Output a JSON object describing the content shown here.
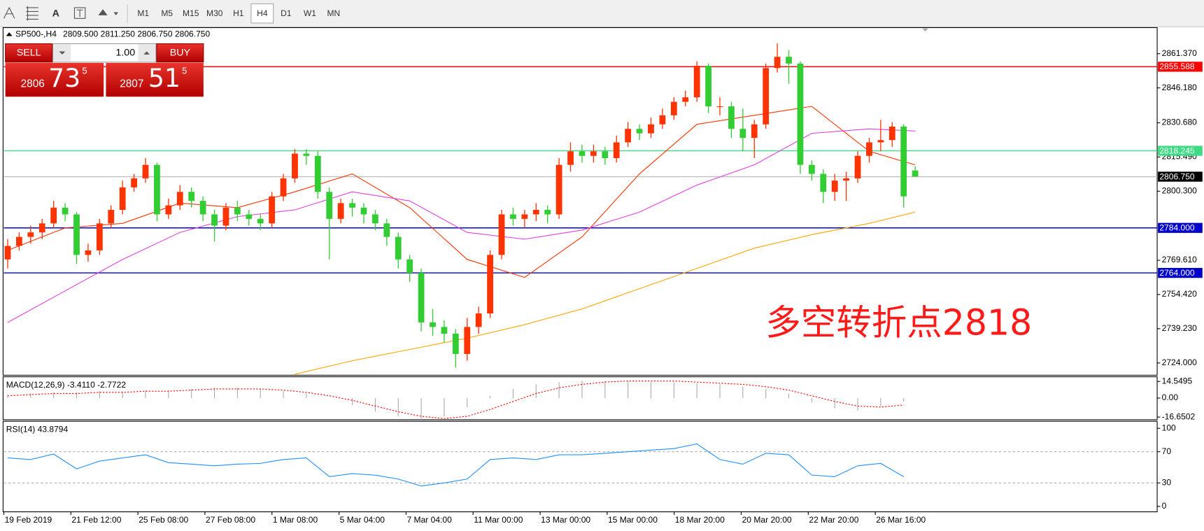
{
  "toolbar": {
    "text_tool": "A",
    "timeframes": [
      "M1",
      "M5",
      "M15",
      "M30",
      "H1",
      "H4",
      "D1",
      "W1",
      "MN"
    ],
    "active": "H4"
  },
  "header": {
    "symbol": "SP500-,H4",
    "quote": "2809.500 2811.250 2806.750 2806.750"
  },
  "trade_panel": {
    "sell": "SELL",
    "buy": "BUY",
    "lot": "1.00",
    "sell_price": [
      "2806",
      "73",
      "5"
    ],
    "buy_price": [
      "2807",
      "51",
      "5"
    ]
  },
  "chart_data": [
    {
      "type": "candlestick",
      "annotation": "多空转折点2818",
      "up_color": "#ff3300",
      "down_color": "#32cd32",
      "ylim": [
        2718.55,
        2872.96
      ],
      "yticks": [
        {
          "value": 2861.37,
          "label": "2861.370"
        },
        {
          "value": 2846.18,
          "label": "2846.180"
        },
        {
          "value": 2830.68,
          "label": "2830.680"
        },
        {
          "value": 2815.49,
          "label": "2815.490"
        },
        {
          "value": 2800.3,
          "label": "2800.300"
        },
        {
          "value": 2769.61,
          "label": "2769.610"
        },
        {
          "value": 2754.42,
          "label": "2754.420"
        },
        {
          "value": 2739.23,
          "label": "2739.230"
        },
        {
          "value": 2724,
          "label": "2724.000"
        }
      ],
      "levels": [
        {
          "value": 2855.588,
          "color": "#ff0000"
        },
        {
          "value": 2818.245,
          "color": "#3ddc84"
        },
        {
          "value": 2806.75,
          "label": "2806.750",
          "color": "#c0c0c0",
          "badge": "#000000"
        },
        {
          "value": 2784,
          "label": "2784.000",
          "color": "#0000cd"
        },
        {
          "value": 2764,
          "label": "2764.000",
          "color": "#0000cd"
        }
      ],
      "open": [
        2770,
        2776,
        2780,
        2782,
        2786,
        2793,
        2790,
        2772,
        2774,
        2786,
        2792,
        2802,
        2806,
        2812,
        2790,
        2794,
        2800,
        2796,
        2790,
        2785,
        2793,
        2790,
        2788,
        2786,
        2798,
        2806,
        2817,
        2816,
        2800,
        2788,
        2795,
        2793,
        2790,
        2786,
        2780,
        2770,
        2764,
        2742,
        2740,
        2737,
        2728,
        2740,
        2746,
        2772,
        2790,
        2788,
        2790,
        2792,
        2790,
        2812,
        2818,
        2816,
        2818,
        2815,
        2822,
        2828,
        2826,
        2830,
        2834,
        2840,
        2842,
        2856,
        2838,
        2838,
        2828,
        2824,
        2830,
        2855,
        2860,
        2857,
        2812,
        2808,
        2800,
        2805,
        2806,
        2816,
        2822,
        2823,
        2829,
        2809.5
      ],
      "high": [
        2779,
        2782,
        2785,
        2788,
        2796,
        2795,
        2791,
        2777,
        2788,
        2794,
        2805,
        2808,
        2815,
        2813,
        2797,
        2803,
        2802,
        2798,
        2792,
        2795,
        2796,
        2792,
        2790,
        2800,
        2808,
        2819,
        2819,
        2818,
        2802,
        2797,
        2797,
        2795,
        2792,
        2788,
        2782,
        2772,
        2766,
        2748,
        2743,
        2739,
        2744,
        2749,
        2774,
        2792,
        2793,
        2792,
        2795,
        2794,
        2815,
        2822,
        2821,
        2821,
        2820,
        2825,
        2831,
        2830,
        2833,
        2837,
        2842,
        2845,
        2858,
        2857,
        2842,
        2840,
        2837,
        2832,
        2857,
        2866,
        2863,
        2858,
        2814,
        2810,
        2808,
        2809,
        2818,
        2824,
        2832,
        2831,
        2830,
        2811.25
      ],
      "low": [
        2766,
        2774,
        2777,
        2779,
        2784,
        2787,
        2768,
        2769,
        2772,
        2784,
        2790,
        2800,
        2804,
        2787,
        2788,
        2792,
        2793,
        2787,
        2778,
        2783,
        2787,
        2785,
        2783,
        2784,
        2796,
        2804,
        2812,
        2797,
        2770,
        2786,
        2789,
        2786,
        2783,
        2776,
        2766,
        2760,
        2738,
        2736,
        2733,
        2722,
        2725,
        2737,
        2744,
        2770,
        2785,
        2784,
        2787,
        2786,
        2788,
        2809,
        2813,
        2813,
        2812,
        2813,
        2820,
        2823,
        2824,
        2828,
        2832,
        2838,
        2840,
        2835,
        2834,
        2824,
        2818,
        2815,
        2828,
        2853,
        2848,
        2808,
        2805,
        2795,
        2796,
        2796,
        2804,
        2813,
        2818,
        2820,
        2793,
        2806.75
      ],
      "close": [
        2776,
        2780,
        2782,
        2786,
        2793,
        2790,
        2772,
        2774,
        2786,
        2792,
        2802,
        2806,
        2812,
        2790,
        2794,
        2800,
        2796,
        2790,
        2785,
        2793,
        2790,
        2788,
        2786,
        2798,
        2806,
        2817,
        2816,
        2800,
        2788,
        2795,
        2793,
        2790,
        2786,
        2780,
        2770,
        2764,
        2742,
        2740,
        2737,
        2728,
        2740,
        2746,
        2772,
        2790,
        2788,
        2790,
        2792,
        2790,
        2812,
        2818,
        2816,
        2818,
        2815,
        2822,
        2828,
        2826,
        2830,
        2834,
        2840,
        2842,
        2856,
        2838,
        2838,
        2828,
        2824,
        2830,
        2855,
        2860,
        2857,
        2812,
        2808,
        2800,
        2805,
        2806,
        2816,
        2822,
        2823,
        2829,
        2798,
        2806.75
      ],
      "ma": [
        {
          "color": "#ff3300",
          "x": [
            0,
            5,
            10,
            15,
            20,
            25,
            30,
            35,
            40,
            45,
            50,
            55,
            60,
            65,
            70,
            75,
            79
          ],
          "values": [
            2774,
            2784,
            2786,
            2795,
            2793,
            2800,
            2808,
            2793,
            2770,
            2762,
            2780,
            2808,
            2830,
            2834,
            2838,
            2818,
            2812
          ]
        },
        {
          "color": "#e040e0",
          "x": [
            0,
            5,
            10,
            15,
            20,
            25,
            30,
            35,
            40,
            45,
            50,
            55,
            60,
            65,
            70,
            75,
            79
          ],
          "values": [
            2742,
            2756,
            2770,
            2782,
            2789,
            2792,
            2800,
            2796,
            2782,
            2779,
            2783,
            2791,
            2803,
            2812,
            2826,
            2828,
            2827
          ]
        },
        {
          "color": "#ffa500",
          "x": [
            25,
            30,
            35,
            40,
            45,
            50,
            55,
            60,
            65,
            70,
            75,
            79
          ],
          "values": [
            2719,
            2725,
            2730,
            2735,
            2741,
            2748,
            2757,
            2766,
            2775,
            2781,
            2786,
            2791
          ]
        }
      ]
    },
    {
      "type": "macd",
      "title": "MACD(12,26,9) -3.4110 -2.7722",
      "ylim": [
        -19,
        18
      ],
      "yticks": [
        14.5495,
        {
          "value": 0,
          "label": "0.00"
        },
        -16.6502
      ],
      "hist_color": "#a9a9a9",
      "signal_color": "#ff0000",
      "x": [
        0,
        2,
        4,
        6,
        8,
        10,
        12,
        14,
        16,
        18,
        20,
        22,
        24,
        26,
        28,
        30,
        32,
        34,
        36,
        38,
        40,
        42,
        44,
        46,
        48,
        50,
        52,
        54,
        56,
        58,
        60,
        62,
        64,
        66,
        68,
        70,
        72,
        74,
        76,
        78
      ],
      "hist": [
        3,
        4,
        5,
        5,
        6,
        6,
        7,
        7,
        8,
        9,
        9,
        8,
        6,
        4,
        0,
        -6,
        -12,
        -16,
        -20,
        -16,
        -8,
        2,
        8,
        12,
        14,
        15,
        15,
        15,
        14,
        14,
        13,
        12,
        10,
        8,
        4,
        -4,
        -9,
        -11,
        -7,
        -3
      ],
      "signal": [
        2,
        3,
        4,
        4,
        5,
        5,
        6,
        6,
        7,
        8,
        8,
        8,
        7,
        5,
        2,
        -2,
        -7,
        -12,
        -16,
        -18,
        -16,
        -10,
        -3,
        4,
        9,
        12,
        14,
        15,
        15,
        15,
        14,
        13,
        12,
        10,
        7,
        2,
        -3,
        -7,
        -8,
        -6
      ]
    },
    {
      "type": "line",
      "title": "RSI(14) 43.8794",
      "ylim": [
        -7,
        109
      ],
      "yticks": [
        100,
        70,
        30,
        0
      ],
      "color": "#1e90ff",
      "x": [
        0,
        2,
        4,
        6,
        8,
        10,
        12,
        14,
        16,
        18,
        20,
        22,
        24,
        26,
        28,
        30,
        32,
        34,
        36,
        38,
        40,
        42,
        44,
        46,
        48,
        50,
        52,
        54,
        56,
        58,
        60,
        62,
        64,
        66,
        68,
        70,
        72,
        74,
        76,
        78
      ],
      "values": [
        62,
        60,
        67,
        48,
        58,
        62,
        66,
        56,
        54,
        52,
        54,
        55,
        60,
        62,
        38,
        42,
        40,
        35,
        26,
        30,
        35,
        60,
        62,
        60,
        66,
        66,
        68,
        70,
        72,
        74,
        80,
        60,
        54,
        68,
        66,
        40,
        38,
        52,
        55,
        38
      ],
      "xtick_labels": [
        "19 Feb 2019",
        "21 Feb 12:00",
        "25 Feb 08:00",
        "27 Feb 08:00",
        "1 Mar 08:00",
        "5 Mar 04:00",
        "7 Mar 04:00",
        "11 Mar 00:00",
        "13 Mar 00:00",
        "15 Mar 00:00",
        "18 Mar 20:00",
        "20 Mar 20:00",
        "22 Mar 20:00",
        "26 Mar 16:00"
      ]
    }
  ]
}
